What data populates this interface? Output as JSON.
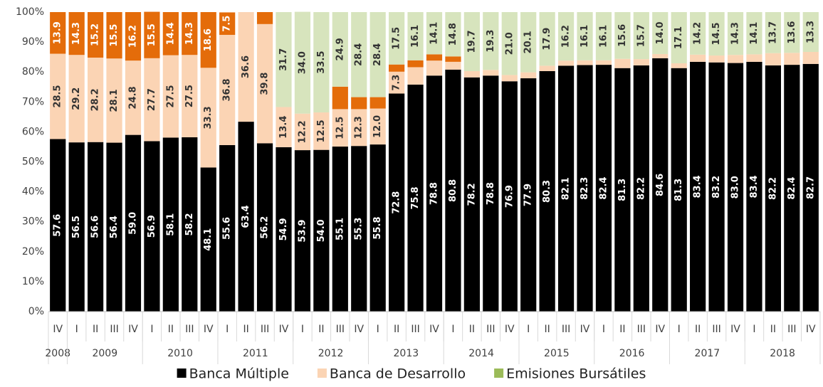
{
  "chart_data": {
    "type": "stacked_bar",
    "categories": [
      "IV",
      "I",
      "II",
      "III",
      "IV",
      "I",
      "II",
      "III",
      "IV",
      "I",
      "II",
      "III",
      "IV",
      "I",
      "II",
      "III",
      "IV",
      "I",
      "II",
      "III",
      "IV",
      "I",
      "II",
      "III",
      "IV",
      "I",
      "II",
      "III",
      "IV",
      "I",
      "II",
      "III",
      "IV",
      "I",
      "II",
      "III",
      "IV",
      "I",
      "II",
      "III",
      "IV"
    ],
    "years": [
      "2008",
      "2009",
      "2010",
      "2011",
      "2012",
      "2013",
      "2014",
      "2015",
      "2016",
      "2017",
      "2018"
    ],
    "ylim": [
      0,
      100
    ],
    "yticks": [
      {
        "value": 0,
        "label": "0%"
      },
      {
        "value": 10,
        "label": "10%"
      },
      {
        "value": 20,
        "label": "20%"
      },
      {
        "value": 30,
        "label": "30%"
      },
      {
        "value": 40,
        "label": "40%"
      },
      {
        "value": 50,
        "label": "50%"
      },
      {
        "value": 60,
        "label": "60%"
      },
      {
        "value": 70,
        "label": "70%"
      },
      {
        "value": 80,
        "label": "80%"
      },
      {
        "value": 90,
        "label": "90%"
      },
      {
        "value": 100,
        "label": "100%"
      }
    ],
    "grid": false,
    "series": [
      {
        "name": "Banca Múltiple",
        "color": "#000000",
        "label_color": "#ffffff",
        "values": [
          57.6,
          56.5,
          56.6,
          56.4,
          59,
          56.9,
          58.1,
          58.2,
          48.1,
          55.6,
          63.4,
          56.2,
          54.9,
          53.9,
          54,
          55.1,
          55.3,
          55.8,
          72.8,
          75.8,
          78.8,
          80.8,
          78.2,
          78.8,
          76.9,
          77.9,
          80.3,
          82.1,
          82.3,
          82.4,
          81.3,
          82.2,
          84.6,
          81.3,
          83.4,
          83.2,
          83,
          83.4,
          82.2,
          82.4,
          82.7
        ],
        "value_labels": [
          "57.6",
          "56.5",
          "56.6",
          "56.4",
          "59.0",
          "56.9",
          "58.1",
          "58.2",
          "48.1",
          "55.6",
          "63.4",
          "56.2",
          "54.9",
          "53.9",
          "54.0",
          "55.1",
          "55.3",
          "55.8",
          "72.8",
          "75.8",
          "78.8",
          "80.8",
          "78.2",
          "78.8",
          "76.9",
          "77.9",
          "80.3",
          "82.1",
          "82.3",
          "82.4",
          "81.3",
          "82.2",
          "84.6",
          "81.3",
          "83.4",
          "83.2",
          "83.0",
          "83.4",
          "82.2",
          "82.4",
          "82.7"
        ]
      },
      {
        "name": "Banca de Desarrollo",
        "color": "#fbd4b4",
        "label_color": "#333333",
        "values": [
          28.5,
          29.2,
          28.2,
          28.1,
          24.8,
          27.7,
          27.5,
          27.5,
          33.3,
          36.8,
          36.6,
          39.8,
          13.4,
          12.2,
          12.5,
          12.5,
          12.3,
          12,
          7.3,
          5.8,
          5,
          2.6,
          2.1,
          1.9,
          2.1,
          2,
          1.8,
          1.7,
          1.6,
          1.5,
          3.1,
          2.1,
          1.4,
          1.6,
          2.4,
          2.3,
          2.7,
          2.5,
          4.1,
          4,
          4
        ],
        "value_labels": [
          "28.5",
          "29.2",
          "28.2",
          "28.1",
          "24.8",
          "27.7",
          "27.5",
          "27.5",
          "33.3",
          "36.8",
          "36.6",
          "39.8",
          "13.4",
          "12.2",
          "12.5",
          "12.5",
          "12.3",
          "12.0",
          "7.3",
          null,
          null,
          null,
          null,
          null,
          null,
          null,
          null,
          null,
          null,
          null,
          null,
          null,
          null,
          null,
          null,
          null,
          null,
          null,
          null,
          null,
          null
        ]
      },
      {
        "color": "#e46c0a",
        "label_color": "#ffffff",
        "values": [
          13.9,
          14.3,
          15.2,
          15.5,
          16.2,
          15.5,
          14.4,
          14.3,
          18.6,
          7.5,
          0,
          4,
          0,
          0,
          0,
          7.5,
          4,
          3.8,
          2.4,
          2.3,
          2.1,
          1.8,
          0,
          0,
          0,
          0,
          0,
          0,
          0,
          0,
          0,
          0,
          0,
          0,
          0,
          0,
          0,
          0,
          0,
          0,
          0
        ],
        "value_labels": [
          "13.9",
          "14.3",
          "15.2",
          "15.5",
          "16.2",
          "15.5",
          "14.4",
          "14.3",
          "18.6",
          "7.5",
          null,
          null,
          null,
          null,
          null,
          null,
          null,
          null,
          null,
          null,
          null,
          null,
          null,
          null,
          null,
          null,
          null,
          null,
          null,
          null,
          null,
          null,
          null,
          null,
          null,
          null,
          null,
          null,
          null,
          null,
          null
        ]
      },
      {
        "name": "Emisiones Bursátiles",
        "color": "#d7e4bd",
        "label_color": "#333333",
        "values": [
          0,
          0,
          0,
          0,
          0,
          0,
          0,
          0,
          0,
          0,
          0,
          0,
          31.7,
          34,
          33.5,
          24.9,
          28.4,
          28.4,
          17.5,
          16.1,
          14.1,
          14.8,
          19.7,
          19.3,
          21,
          20.1,
          17.9,
          16.2,
          16.1,
          16.1,
          15.6,
          15.7,
          14,
          17.1,
          14.2,
          14.5,
          14.3,
          14.1,
          13.7,
          13.6,
          13.3
        ],
        "value_labels": [
          null,
          null,
          null,
          null,
          null,
          null,
          null,
          null,
          null,
          null,
          null,
          null,
          "31.7",
          "34.0",
          "33.5",
          "24.9",
          "28.4",
          "28.4",
          "17.5",
          "16.1",
          "14.1",
          "14.8",
          "19.7",
          "19.3",
          "21.0",
          "20.1",
          "17.9",
          "16.2",
          "16.1",
          "16.1",
          "15.6",
          "15.7",
          "14.0",
          "17.1",
          "14.2",
          "14.5",
          "14.3",
          "14.1",
          "13.7",
          "13.6",
          "13.3"
        ]
      }
    ]
  }
}
